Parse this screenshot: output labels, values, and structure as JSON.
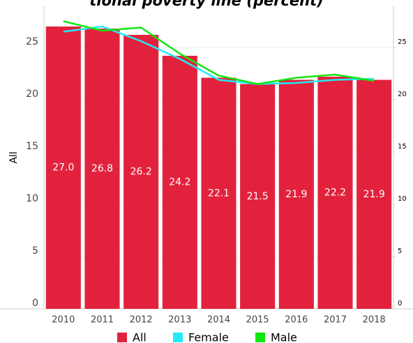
{
  "chart_data": {
    "type": "bar",
    "title": "tional poverty line (percent)",
    "ylabel": "All",
    "categories": [
      "2010",
      "2011",
      "2012",
      "2013",
      "2014",
      "2015",
      "2016",
      "2017",
      "2018"
    ],
    "series": [
      {
        "name": "All",
        "color": "#e2223d",
        "type": "bar",
        "values": [
          27.0,
          26.8,
          26.2,
          24.2,
          22.1,
          21.5,
          21.9,
          22.2,
          21.9
        ],
        "value_labels": [
          "27.0",
          "26.8",
          "26.2",
          "24.2",
          "22.1",
          "21.5",
          "21.9",
          "22.2",
          "21.9"
        ]
      },
      {
        "name": "Female",
        "color": "#22eaf7",
        "type": "line",
        "axis": "y2",
        "values": [
          26.5,
          27.0,
          25.6,
          23.9,
          21.9,
          21.5,
          21.6,
          21.9,
          22.0
        ]
      },
      {
        "name": "Male",
        "color": "#11e611",
        "type": "line",
        "axis": "y2",
        "values": [
          27.5,
          26.6,
          26.9,
          24.4,
          22.3,
          21.5,
          22.1,
          22.4,
          21.8
        ]
      }
    ],
    "ylim": [
      0,
      29
    ],
    "yticks": [
      0,
      5,
      10,
      15,
      20,
      25
    ],
    "y2lim": [
      0,
      29
    ],
    "y2ticks": [
      0,
      5,
      10,
      15,
      20,
      25
    ],
    "grid": true
  }
}
